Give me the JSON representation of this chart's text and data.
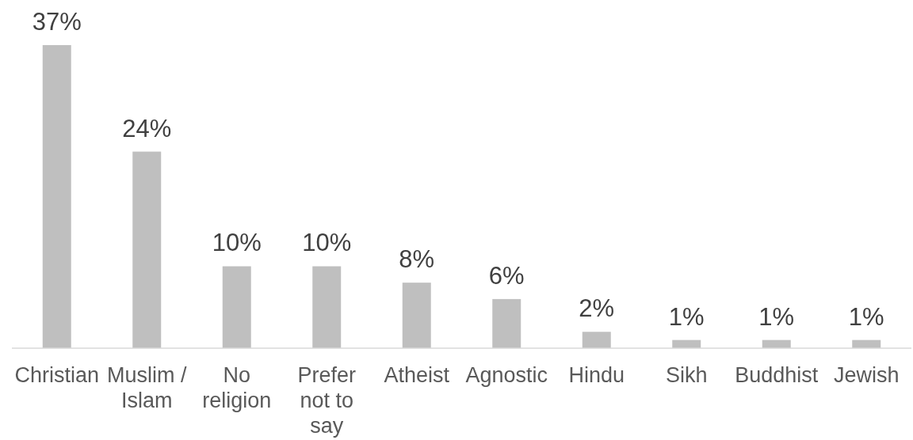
{
  "chart_data": {
    "type": "bar",
    "categories": [
      "Christian",
      "Muslim / Islam",
      "No religion",
      "Prefer not to say",
      "Atheist",
      "Agnostic",
      "Hindu",
      "Sikh",
      "Buddhist",
      "Jewish"
    ],
    "values": [
      37,
      24,
      10,
      10,
      8,
      6,
      2,
      1,
      1,
      1
    ],
    "value_labels": [
      "37%",
      "24%",
      "10%",
      "10%",
      "8%",
      "6%",
      "2%",
      "1%",
      "1%",
      "1%"
    ],
    "color": "#bfbfbf"
  }
}
